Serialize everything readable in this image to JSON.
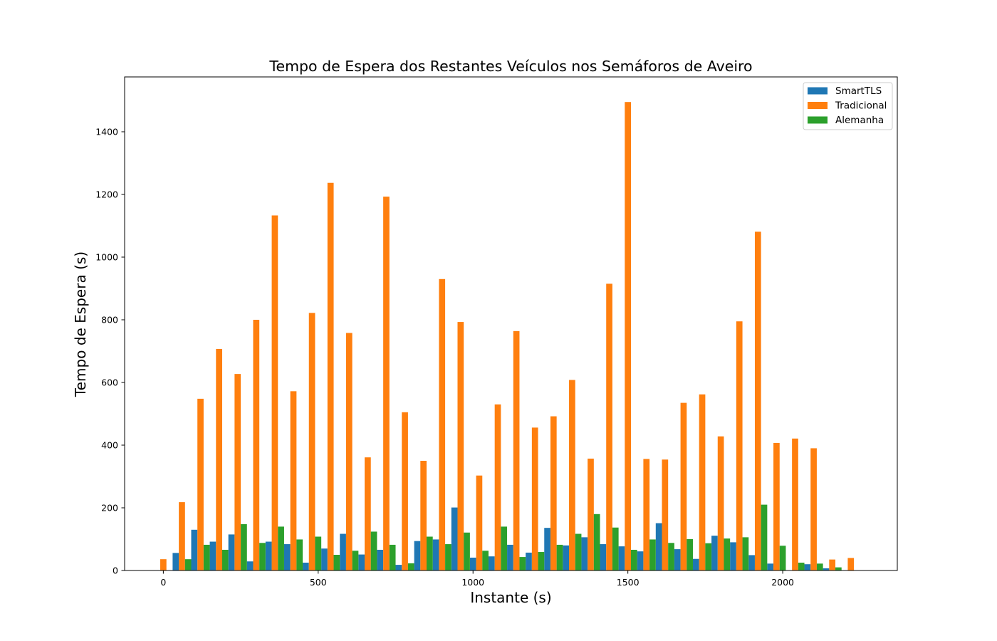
{
  "chart_data": {
    "type": "bar",
    "title": "Tempo de Espera dos Restantes Veículos nos Semáforos de Aveiro",
    "xlabel": "Instante (s)",
    "ylabel": "Tempo de Espera (s)",
    "xlim": [
      -125,
      2370
    ],
    "ylim": [
      0,
      1575
    ],
    "xticks": [
      0,
      500,
      1000,
      1500,
      2000
    ],
    "yticks": [
      0,
      200,
      400,
      600,
      800,
      1000,
      1200,
      1400
    ],
    "bar_group_width": 60,
    "legend_position": "top-right",
    "grid": false,
    "x": [
      0,
      60,
      120,
      180,
      240,
      300,
      360,
      420,
      480,
      540,
      600,
      660,
      720,
      780,
      840,
      900,
      960,
      1020,
      1080,
      1140,
      1200,
      1260,
      1320,
      1380,
      1440,
      1500,
      1560,
      1620,
      1680,
      1740,
      1800,
      1860,
      1920,
      1980,
      2040,
      2100,
      2160,
      2220
    ],
    "series": [
      {
        "name": "SmartTLS",
        "color": "#1f77b4",
        "values": [
          0,
          56,
          130,
          92,
          115,
          29,
          92,
          84,
          25,
          70,
          117,
          51,
          66,
          18,
          94,
          99,
          201,
          41,
          45,
          82,
          57,
          136,
          80,
          106,
          84,
          77,
          61,
          151,
          68,
          37,
          111,
          90,
          49,
          22,
          0,
          20,
          7,
          0
        ]
      },
      {
        "name": "Tradicional",
        "color": "#ff7f0e",
        "values": [
          36,
          218,
          548,
          707,
          627,
          800,
          1133,
          572,
          822,
          1237,
          758,
          361,
          1193,
          505,
          350,
          930,
          793,
          303,
          530,
          764,
          456,
          492,
          608,
          357,
          915,
          1495,
          356,
          354,
          535,
          562,
          428,
          795,
          1081,
          407,
          421,
          390,
          35,
          40
        ]
      },
      {
        "name": "Alemanha",
        "color": "#2ca02c",
        "values": [
          0,
          36,
          82,
          66,
          148,
          88,
          140,
          99,
          108,
          50,
          63,
          124,
          82,
          23,
          108,
          84,
          121,
          63,
          140,
          43,
          59,
          82,
          117,
          180,
          137,
          66,
          99,
          88,
          100,
          87,
          102,
          106,
          210,
          79,
          25,
          22,
          10,
          0
        ]
      }
    ]
  }
}
